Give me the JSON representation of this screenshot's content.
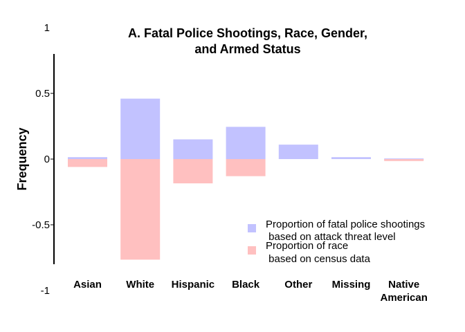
{
  "chart_data": {
    "type": "bar",
    "title_line1": "A. Fatal Police Shootings, Race, Gender,",
    "title_line2": "and Armed Status",
    "ylabel": "Frequency",
    "xlabel": "",
    "ylim": [
      -1,
      1
    ],
    "yticks": [
      "1",
      "0.5",
      "0",
      "-0.5",
      "-1"
    ],
    "ytick_values": [
      1,
      0.5,
      0,
      -0.5,
      -1
    ],
    "categories": [
      [
        "Asian"
      ],
      [
        "White"
      ],
      [
        "Hispanic"
      ],
      [
        "Black"
      ],
      [
        "Other"
      ],
      [
        "Missing"
      ],
      [
        "Native",
        "American"
      ]
    ],
    "series": [
      {
        "name_line1": "Proportion of fatal police shootings",
        "name_line2": " based on attack threat level",
        "color": "#c2c2ff",
        "values": [
          0.015,
          0.46,
          0.15,
          0.245,
          0.11,
          0.015,
          0.005
        ]
      },
      {
        "name_line1": "Proportion of race",
        "name_line2": " based on census data",
        "color": "#ffc0c0",
        "values": [
          -0.06,
          -0.765,
          -0.185,
          -0.13,
          0.0,
          0.0,
          -0.015
        ]
      }
    ],
    "legend_position": "bottom-right",
    "grid": false
  }
}
